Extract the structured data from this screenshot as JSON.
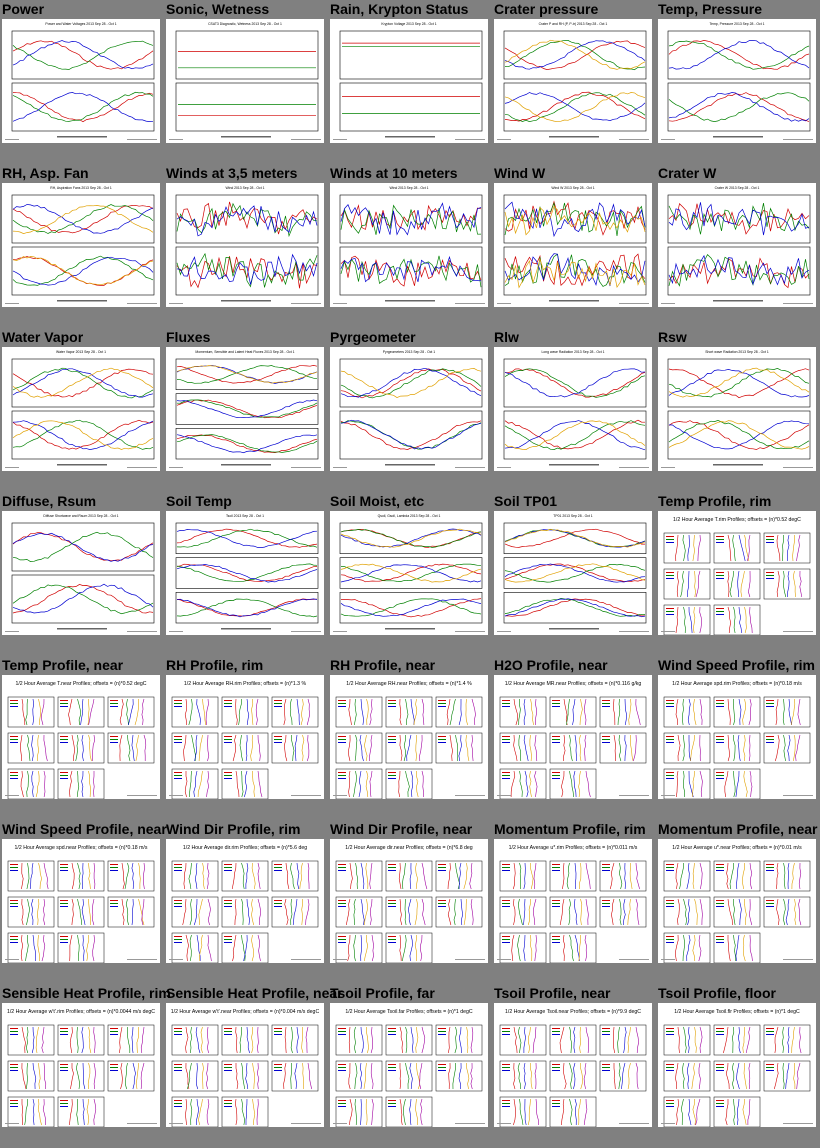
{
  "page": {
    "background": "#808080"
  },
  "cells": [
    {
      "title": "Power",
      "kind": "plot2",
      "sub": "Power and Water Voltages 2013 Sep 28 - Oct 1"
    },
    {
      "title": "Sonic, Wetness",
      "kind": "plot2flat",
      "sub": "CSAT3 Diagnostic, Wetness 2013 Sep 28 - Oct 1"
    },
    {
      "title": "Rain, Krypton Status",
      "kind": "plot2flat",
      "sub": "Krypton Voltage 2013 Sep 28 - Oct 1"
    },
    {
      "title": "Crater pressure",
      "kind": "plot2",
      "sub": "Crater P and RH (P, P-tr) 2013 Sep 28 - Oct 1"
    },
    {
      "title": "Temp, Pressure",
      "kind": "plot2",
      "sub": "Temp, Pressure 2013 Sep 28 - Oct 1"
    },
    {
      "title": "RH, Asp. Fan",
      "kind": "plot2",
      "sub": "RH, Aspiration Fans 2013 Sep 28 - Oct 1"
    },
    {
      "title": "Winds at 3,5 meters",
      "kind": "plot2noisy",
      "sub": "Wind 2013 Sep 28 - Oct 1"
    },
    {
      "title": "Winds at 10 meters",
      "kind": "plot2noisy",
      "sub": "Wind 2013 Sep 28 - Oct 1"
    },
    {
      "title": "Wind W",
      "kind": "plot2noisy",
      "sub": "Wind W 2013 Sep 28 - Oct 1"
    },
    {
      "title": "Crater W",
      "kind": "plot2noisy",
      "sub": "Crater W 2013 Sep 28 - Oct 1"
    },
    {
      "title": "Water Vapor",
      "kind": "plot2",
      "sub": "Water Vapor 2013 Sep 28 - Oct 1"
    },
    {
      "title": "Fluxes",
      "kind": "plot3",
      "sub": "Momentum, Sensible and Latent Heat Fluxes 2013 Sep 28 - Oct 1"
    },
    {
      "title": "Pyrgeometer",
      "kind": "plot2",
      "sub": "Pyrgeometers 2013 Sep 28 - Oct 1"
    },
    {
      "title": "Rlw",
      "kind": "plot2",
      "sub": "Long wave Radiation 2013 Sep 28 - Oct 1"
    },
    {
      "title": "Rsw",
      "kind": "plot2",
      "sub": "Short wave Radiation 2013 Sep 28 - Oct 1"
    },
    {
      "title": "Diffuse, Rsum",
      "kind": "plot2",
      "sub": "Diffuse Shortwave and Rsum 2013 Sep 28 - Oct 1"
    },
    {
      "title": "Soil Temp",
      "kind": "plot3",
      "sub": "Tsoil 2013 Sep 28 - Oct 1"
    },
    {
      "title": "Soil Moist, etc",
      "kind": "plot3",
      "sub": "Qsoil, Gsoil, Lambda 2013 Sep 28 - Oct 1"
    },
    {
      "title": "Soil TP01",
      "kind": "plot3",
      "sub": "TP01 2013 Sep 28 - Oct 1"
    },
    {
      "title": "Temp Profile, rim",
      "kind": "profile",
      "sub": "1/2 Hour Average T.rim Profiles; offsets = (n)*0.52 degC"
    },
    {
      "title": "Temp Profile, near",
      "kind": "profile",
      "sub": "1/2 Hour Average T.near Profiles; offsets = (n)*0.52 degC"
    },
    {
      "title": "RH Profile, rim",
      "kind": "profile",
      "sub": "1/2 Hour Average RH.rim Profiles; offsets = (n)*1.3 %"
    },
    {
      "title": "RH Profile, near",
      "kind": "profile",
      "sub": "1/2 Hour Average RH.near Profiles; offsets = (n)*1.4 %"
    },
    {
      "title": "H2O Profile, near",
      "kind": "profile",
      "sub": "1/2 Hour Average MR.near Profiles; offsets = (n)*0.116 g/kg"
    },
    {
      "title": "Wind Speed Profile, rim",
      "kind": "profile",
      "sub": "1/2 Hour Average spd.rim Profiles; offsets = (n)*0.18 m/s"
    },
    {
      "title": "Wind Speed Profile, near",
      "kind": "profile",
      "sub": "1/2 Hour Average spd.near Profiles; offsets = (n)*0.18 m/s"
    },
    {
      "title": "Wind Dir Profile, rim",
      "kind": "profile",
      "sub": "1/2 Hour Average dir.rim Profiles; offsets = (n)*5.6 deg"
    },
    {
      "title": "Wind Dir Profile, near",
      "kind": "profile",
      "sub": "1/2 Hour Average dir.near Profiles; offsets = (n)*6.8 deg"
    },
    {
      "title": "Momentum Profile, rim",
      "kind": "profile",
      "sub": "1/2 Hour Average u*.rim Profiles; offsets = (n)*0.011 m/s"
    },
    {
      "title": "Momentum Profile, near",
      "kind": "profile",
      "sub": "1/2 Hour Average u*.near Profiles; offsets = (n)*0.01 m/s"
    },
    {
      "title": "Sensible Heat Profile, rim",
      "kind": "profile",
      "sub": "1/2 Hour Average w't'.rim Profiles; offsets = (n)*0.0044 m/s degC"
    },
    {
      "title": "Sensible Heat Profile, near",
      "kind": "profile",
      "sub": "1/2 Hour Average w't'.near Profiles; offsets = (n)*0.004 m/s degC"
    },
    {
      "title": "Tsoil Profile, far",
      "kind": "profile",
      "sub": "1/2 Hour Average Tsoil.far Profiles; offsets = (n)*1 degC"
    },
    {
      "title": "Tsoil Profile, near",
      "kind": "profile",
      "sub": "1/2 Hour Average Tsoil.near Profiles; offsets = (n)*9.9 degC"
    },
    {
      "title": "Tsoil Profile, floor",
      "kind": "profile",
      "sub": "1/2 Hour Average Tsoil.flr Profiles; offsets = (n)*1 degC"
    }
  ],
  "colors": {
    "series": [
      "#d00000",
      "#008000",
      "#0000d0",
      "#e0a000",
      "#a000a0",
      "#00a0a0",
      "#606060",
      "#ff6060"
    ]
  }
}
